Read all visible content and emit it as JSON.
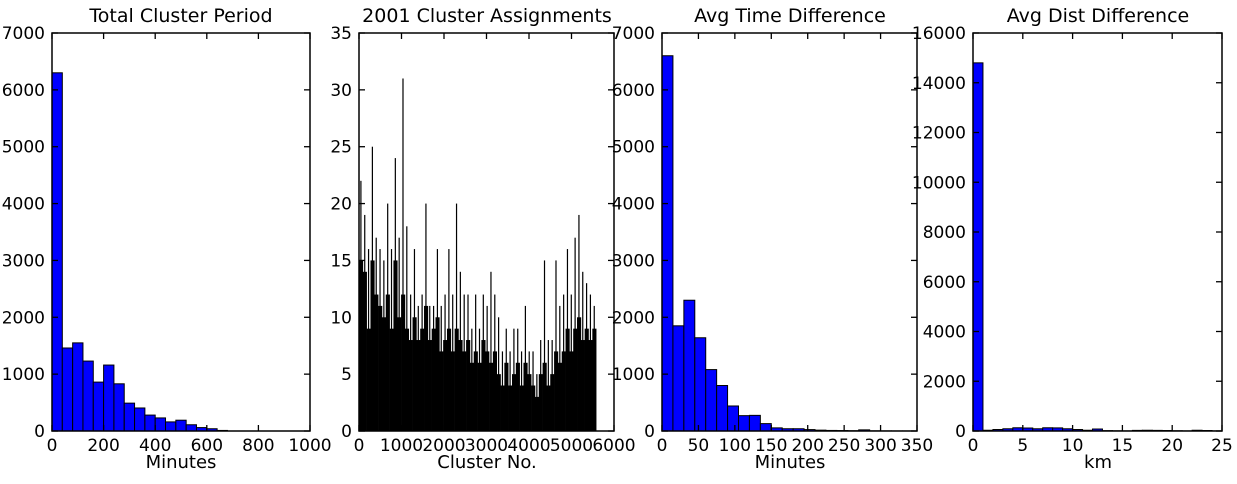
{
  "figure": {
    "background": "#ffffff",
    "text_color": "#000000",
    "spine_color": "#000000"
  },
  "chart_data": [
    {
      "type": "bar",
      "subtype": "histogram",
      "title": "Total Cluster Period",
      "xlabel": "Minutes",
      "ylabel": "",
      "xlim": [
        0,
        1000
      ],
      "ylim": [
        0,
        7000
      ],
      "xticks": [
        0,
        200,
        400,
        600,
        800,
        1000
      ],
      "yticks": [
        0,
        1000,
        2000,
        3000,
        4000,
        5000,
        6000,
        7000
      ],
      "bin_start": 0,
      "bin_width": 40,
      "values": [
        6300,
        1460,
        1550,
        1230,
        860,
        1160,
        830,
        490,
        405,
        280,
        230,
        160,
        190,
        110,
        60,
        40,
        10
      ],
      "bar_color": "#0000ff",
      "edge_color": "#000000",
      "grid": false,
      "legend": null
    },
    {
      "type": "bar",
      "subtype": "dense-spike-series",
      "title": "2001 Cluster Assignments",
      "xlabel": "Cluster No.",
      "ylabel": "",
      "xlim": [
        0,
        6000
      ],
      "ylim": [
        0,
        35
      ],
      "xticks": [
        0,
        1000,
        2000,
        3000,
        4000,
        5000,
        6000
      ],
      "yticks": [
        0,
        5,
        10,
        15,
        20,
        25,
        30,
        35
      ],
      "x_start": 0,
      "x_step": 90,
      "base": [
        15,
        14,
        9,
        15,
        12,
        11,
        10,
        12,
        9,
        15,
        10,
        12,
        9,
        8,
        10,
        8,
        9,
        11,
        8,
        9,
        10,
        7,
        8,
        9,
        7,
        9,
        8,
        7,
        8,
        6,
        7,
        6,
        8,
        7,
        6,
        7,
        5,
        4,
        6,
        4,
        5,
        6,
        4,
        6,
        5,
        4,
        3,
        5,
        6,
        4,
        5,
        7,
        6,
        7,
        9,
        7,
        9,
        10,
        8,
        9,
        8,
        9
      ],
      "peaks": [
        22,
        19,
        16,
        25,
        17,
        16,
        15,
        20,
        16,
        24,
        17,
        31,
        18,
        12,
        16,
        11,
        12,
        20,
        11,
        11,
        16,
        11,
        12,
        16,
        12,
        20,
        14,
        12,
        12,
        9,
        12,
        9,
        12,
        11,
        14,
        12,
        10,
        7,
        9,
        7,
        9,
        9,
        7,
        11,
        7,
        7,
        5,
        8,
        15,
        8,
        8,
        15,
        11,
        12,
        16,
        12,
        17,
        19,
        14,
        13,
        12,
        11
      ],
      "bar_color": "#000000",
      "edge_color": "#000000",
      "grid": false,
      "legend": null
    },
    {
      "type": "bar",
      "subtype": "histogram",
      "title": "Avg Time Difference",
      "xlabel": "Minutes",
      "ylabel": "",
      "xlim": [
        0,
        350
      ],
      "ylim": [
        0,
        7000
      ],
      "xticks": [
        0,
        50,
        100,
        150,
        200,
        250,
        300,
        350
      ],
      "yticks": [
        0,
        1000,
        2000,
        3000,
        4000,
        5000,
        6000,
        7000
      ],
      "bin_start": 0,
      "bin_width": 15,
      "values": [
        6600,
        1850,
        2300,
        1640,
        1080,
        800,
        440,
        270,
        275,
        130,
        55,
        40,
        40,
        25,
        15,
        10,
        8,
        5,
        20,
        3,
        2,
        1,
        1
      ],
      "bar_color": "#0000ff",
      "edge_color": "#000000",
      "grid": false,
      "legend": null
    },
    {
      "type": "bar",
      "subtype": "histogram",
      "title": "Avg Dist Difference",
      "xlabel": "km",
      "ylabel": "",
      "xlim": [
        0,
        25
      ],
      "ylim": [
        0,
        16000
      ],
      "xticks": [
        0,
        5,
        10,
        15,
        20,
        25
      ],
      "yticks": [
        0,
        2000,
        4000,
        6000,
        8000,
        10000,
        12000,
        14000,
        16000
      ],
      "bin_start": 0,
      "bin_width": 1,
      "values": [
        14800,
        30,
        60,
        90,
        130,
        120,
        90,
        130,
        125,
        90,
        60,
        30,
        80,
        15,
        8,
        5,
        25,
        30,
        25,
        20,
        10,
        5,
        30,
        20,
        5
      ],
      "bar_color": "#0000ff",
      "edge_color": "#000000",
      "grid": false,
      "legend": null
    }
  ]
}
